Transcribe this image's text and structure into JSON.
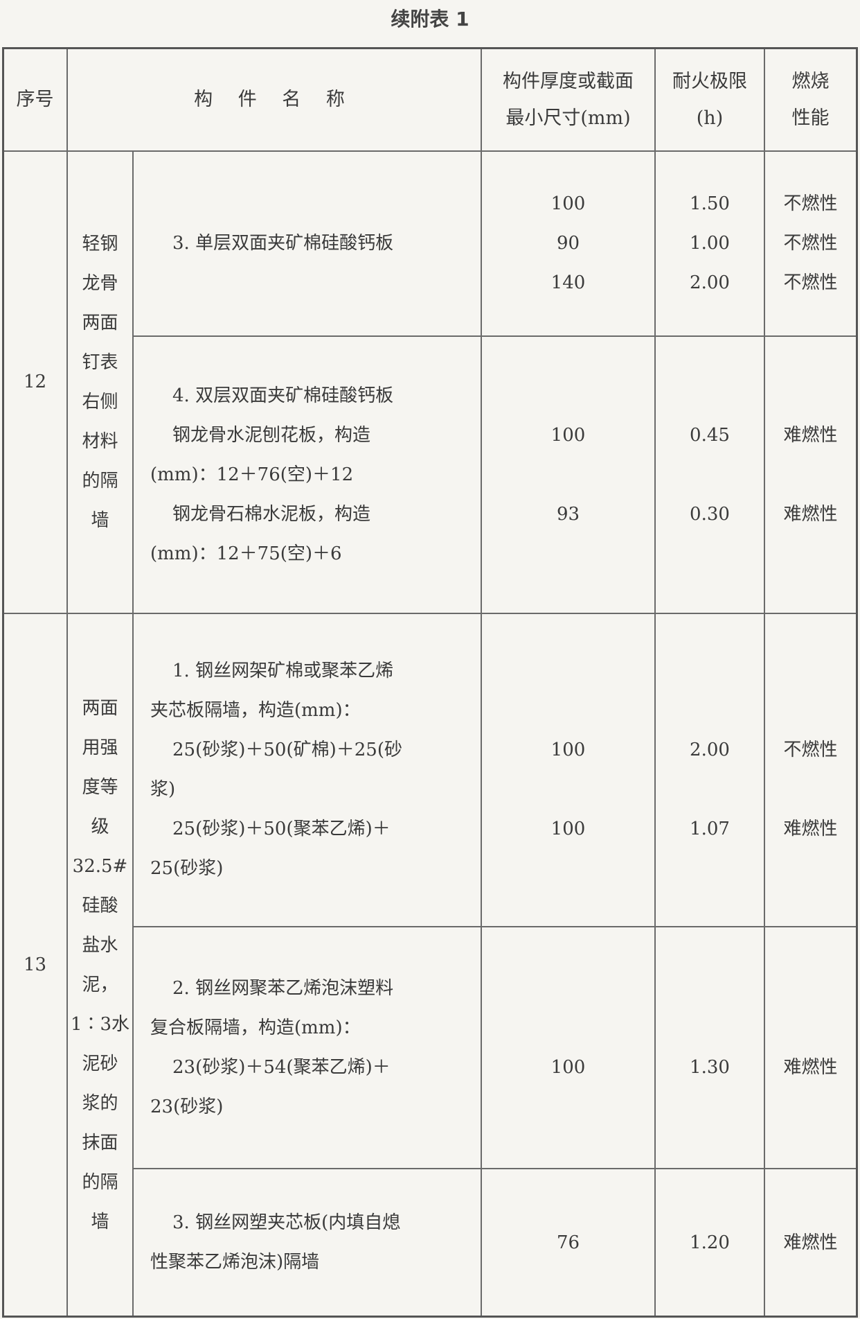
{
  "title": "续附表 1",
  "headers": {
    "seq": [
      "序号"
    ],
    "name": [
      "构 件 名 称"
    ],
    "thickness": [
      "构件厚度或截面",
      "最小尺寸(mm)"
    ],
    "fire_limit": [
      "耐火极限",
      "(h)"
    ],
    "combustion": [
      "燃烧",
      "性能"
    ]
  },
  "groups": [
    {
      "seq": "12",
      "label": [
        "轻钢",
        "龙骨",
        "两面",
        "钉表",
        "右侧",
        "材料",
        "的隔",
        "墙"
      ],
      "items": [
        {
          "name": [
            {
              "t": "3. 单层双面夹矿棉硅酸钙板",
              "ind": true
            }
          ],
          "thickness": [
            "100",
            "90",
            "140"
          ],
          "fire_limit": [
            "1.50",
            "1.00",
            "2.00"
          ],
          "combustion": [
            "不燃性",
            "不燃性",
            "不燃性"
          ]
        },
        {
          "name": [
            {
              "t": "4. 双层双面夹矿棉硅酸钙板",
              "ind": true
            },
            {
              "t": "钢龙骨水泥刨花板，构造",
              "ind": true
            },
            {
              "t": "(mm)：12＋76(空)＋12",
              "ind": false
            },
            {
              "t": "钢龙骨石棉水泥板，构造",
              "ind": true
            },
            {
              "t": "(mm)：12＋75(空)＋6",
              "ind": false
            }
          ],
          "thickness": [
            "",
            "100",
            "",
            "93",
            ""
          ],
          "fire_limit": [
            "",
            "0.45",
            "",
            "0.30",
            ""
          ],
          "combustion": [
            "",
            "难燃性",
            "",
            "难燃性",
            ""
          ]
        }
      ]
    },
    {
      "seq": "13",
      "label": [
        "两面",
        "用强",
        "度等",
        "级",
        "32.5#",
        "硅酸",
        "盐水",
        "泥，",
        "1∶3水",
        "泥砂",
        "浆的",
        "抹面",
        "的隔",
        "墙"
      ],
      "items": [
        {
          "name": [
            {
              "t": "1. 钢丝网架矿棉或聚苯乙烯",
              "ind": true
            },
            {
              "t": "夹芯板隔墙，构造(mm)：",
              "ind": false
            },
            {
              "t": "25(砂浆)＋50(矿棉)＋25(砂",
              "ind": true
            },
            {
              "t": "浆)",
              "ind": false
            },
            {
              "t": "25(砂浆)＋50(聚苯乙烯)＋",
              "ind": true
            },
            {
              "t": "25(砂浆)",
              "ind": false
            }
          ],
          "thickness": [
            "",
            "",
            "100",
            "",
            "100",
            ""
          ],
          "fire_limit": [
            "",
            "",
            "2.00",
            "",
            "1.07",
            ""
          ],
          "combustion": [
            "",
            "",
            "不燃性",
            "",
            "难燃性",
            ""
          ]
        },
        {
          "name": [
            {
              "t": "2. 钢丝网聚苯乙烯泡沫塑料",
              "ind": true
            },
            {
              "t": "复合板隔墙，构造(mm)：",
              "ind": false
            },
            {
              "t": "23(砂浆)＋54(聚苯乙烯)＋",
              "ind": true
            },
            {
              "t": "23(砂浆)",
              "ind": false
            }
          ],
          "thickness": [
            "",
            "",
            "100",
            ""
          ],
          "fire_limit": [
            "",
            "",
            "1.30",
            ""
          ],
          "combustion": [
            "",
            "",
            "难燃性",
            ""
          ]
        },
        {
          "name": [
            {
              "t": "3. 钢丝网塑夹芯板(内填自熄",
              "ind": true
            },
            {
              "t": "性聚苯乙烯泡沫)隔墙",
              "ind": false
            }
          ],
          "thickness": [
            "76"
          ],
          "fire_limit": [
            "1.20"
          ],
          "combustion": [
            "难燃性"
          ]
        }
      ]
    }
  ]
}
